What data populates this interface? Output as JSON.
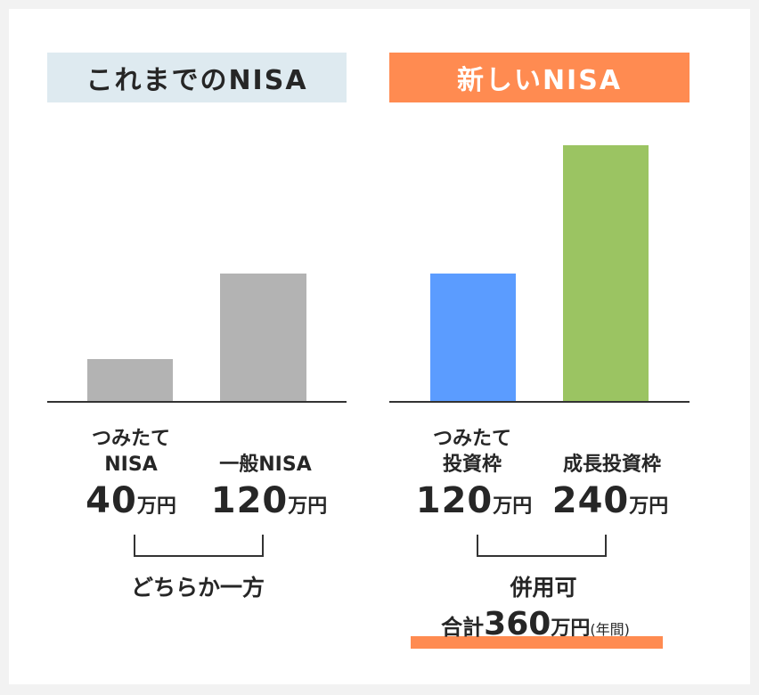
{
  "chart_data": [
    {
      "type": "bar",
      "title": "これまでのNISA",
      "categories": [
        "つみたて\nNISA",
        "一般NISA"
      ],
      "values": [
        40,
        120
      ],
      "value_unit": "万円",
      "colors": [
        "#b3b3b3",
        "#b3b3b3"
      ],
      "bracket_note": "どちらか一方",
      "ylim": [
        0,
        240
      ]
    },
    {
      "type": "bar",
      "title": "新しいNISA",
      "categories": [
        "つみたて\n投資枠",
        "成長投資枠"
      ],
      "values": [
        120,
        240
      ],
      "value_unit": "万円",
      "colors": [
        "#5b9cff",
        "#9bc462"
      ],
      "bracket_note": "併用可",
      "ylim": [
        0,
        240
      ]
    }
  ],
  "labels": {
    "old_left_line1": "つみたて",
    "old_left_line2": "NISA",
    "old_right": "一般NISA",
    "new_left_line1": "つみたて",
    "new_left_line2": "投資枠",
    "new_right": "成長投資枠"
  },
  "amounts": {
    "old_left": "40",
    "old_right": "120",
    "new_left": "120",
    "new_right": "240",
    "unit": "万円"
  },
  "total": {
    "prefix": "合計",
    "number": "360",
    "unit": "万円",
    "suffix": "(年間)"
  }
}
